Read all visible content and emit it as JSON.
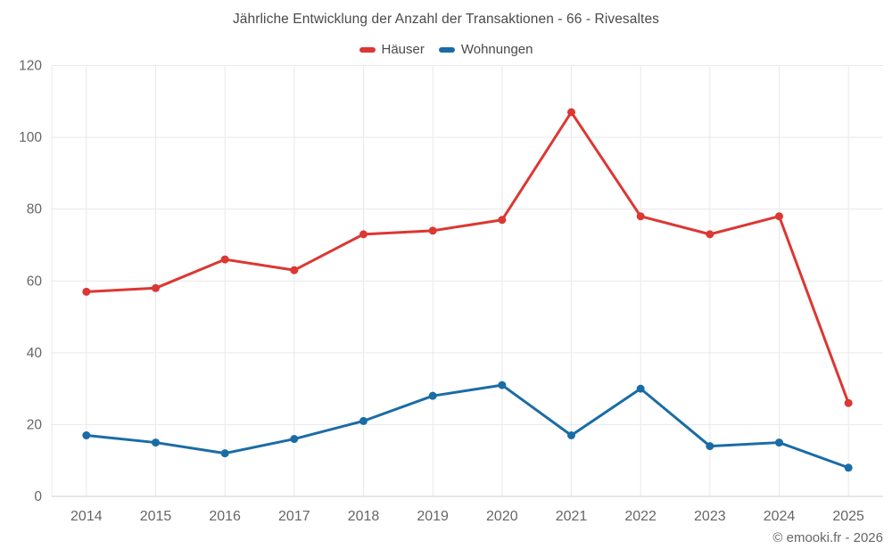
{
  "title": "Jährliche Entwicklung der Anzahl der Transaktionen - 66 - Rivesaltes",
  "footer": "© emooki.fr - 2026",
  "colors": {
    "background": "#ffffff",
    "title_text": "#4a4a4a",
    "axis_label": "#666666",
    "gridline": "#e9e9e9",
    "axis_line": "#cccccc",
    "haeuser_red": "#dc3732",
    "wohnungen_blue": "#1a6ca6"
  },
  "chart_data": {
    "type": "line",
    "title": "Jährliche Entwicklung der Anzahl der Transaktionen - 66 - Rivesaltes",
    "categories": [
      "2014",
      "2015",
      "2016",
      "2017",
      "2018",
      "2019",
      "2020",
      "2021",
      "2022",
      "2023",
      "2024",
      "2025"
    ],
    "series": [
      {
        "name": "Häuser",
        "color": "#dc3732",
        "values": [
          57,
          58,
          66,
          63,
          73,
          74,
          77,
          107,
          78,
          73,
          78,
          26
        ]
      },
      {
        "name": "Wohnungen",
        "color": "#1a6ca6",
        "values": [
          17,
          15,
          12,
          16,
          21,
          28,
          31,
          17,
          30,
          14,
          15,
          8
        ]
      }
    ],
    "xlabel": "",
    "ylabel": "",
    "ylim": [
      0,
      120
    ],
    "ytick_step": 20,
    "yticks": [
      0,
      20,
      40,
      60,
      80,
      100,
      120
    ],
    "grid": true,
    "legend_position": "top",
    "marker": "circle",
    "annotation": "© emooki.fr - 2026"
  }
}
